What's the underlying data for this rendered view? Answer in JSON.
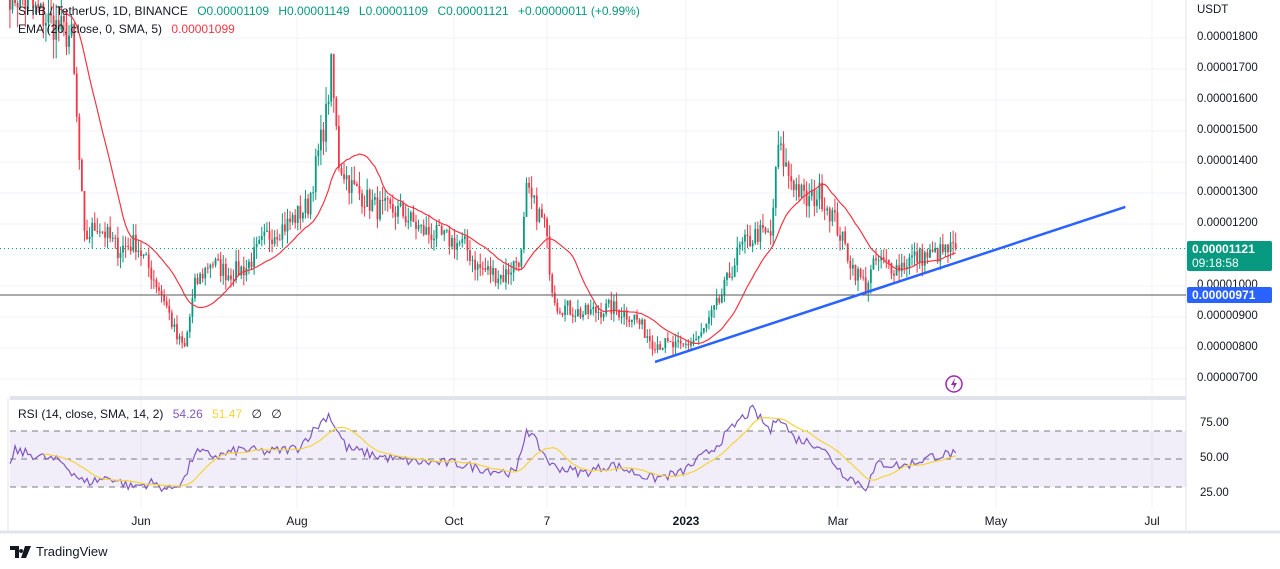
{
  "header": {
    "symbol": "SHIB / TetherUS, 1D, BINANCE",
    "open": "O0.00001109",
    "high": "H0.00001149",
    "low": "L0.00001109",
    "close": "C0.00001121",
    "change": "+0.00000011 (+0.99%)"
  },
  "ema_legend": {
    "label": "EMA (20, close, 0, SMA, 5)",
    "value": "0.00001099"
  },
  "rsi_legend": {
    "label": "RSI (14, close, SMA, 14, 2)",
    "rsi": "54.26",
    "sma": "51.47",
    "x1": "∅",
    "x2": "∅"
  },
  "price_axis": {
    "unit": "USDT",
    "ticks": [
      "0.00001800",
      "0.00001700",
      "0.00001600",
      "0.00001500",
      "0.00001400",
      "0.00001300",
      "0.00001200",
      "0.00001000",
      "0.00000900",
      "0.00000800",
      "0.00000700"
    ]
  },
  "last_price": {
    "value": "0.00001121",
    "countdown": "09:18:58",
    "color": "#089981"
  },
  "hline": {
    "value": "0.00000971",
    "color": "#2962ff"
  },
  "rsi_axis": {
    "ticks": [
      "75.00",
      "50.00",
      "25.00"
    ]
  },
  "time_axis": {
    "labels": [
      "Jun",
      "Aug",
      "Oct",
      "7",
      "2023",
      "Mar",
      "May",
      "Jul"
    ]
  },
  "brand": "TradingView",
  "colors": {
    "up": "#089981",
    "down": "#f23645",
    "ema": "#f23645",
    "rsi": "#7e57c2",
    "rsi_sma": "#f5d33b",
    "trendline": "#2962ff"
  },
  "chart_data": {
    "type": "candlestick",
    "title": "SHIB / TetherUS, 1D, BINANCE",
    "ylabel": "USDT",
    "price_scale": "1e-8",
    "ylim": [
      6.8e-06,
      1.83e-05
    ],
    "close_keypoints": [
      [
        "2022-04-11",
        19.5
      ],
      [
        "2022-05-05",
        18
      ],
      [
        "2022-05-08",
        14
      ],
      [
        "2022-05-10",
        11.5
      ],
      [
        "2022-05-15",
        12
      ],
      [
        "2022-05-23",
        11.2
      ],
      [
        "2022-05-30",
        11.4
      ],
      [
        "2022-06-10",
        9.6
      ],
      [
        "2022-06-15",
        8.3
      ],
      [
        "2022-06-18",
        8.0
      ],
      [
        "2022-06-22",
        10
      ],
      [
        "2022-06-28",
        10.8
      ],
      [
        "2022-07-05",
        10.4
      ],
      [
        "2022-07-12",
        10.6
      ],
      [
        "2022-07-20",
        11.6
      ],
      [
        "2022-07-28",
        12
      ],
      [
        "2022-08-05",
        12.6
      ],
      [
        "2022-08-12",
        15.5
      ],
      [
        "2022-08-14",
        17
      ],
      [
        "2022-08-17",
        14
      ],
      [
        "2022-08-22",
        13.2
      ],
      [
        "2022-09-01",
        12.5
      ],
      [
        "2022-09-10",
        12.4
      ],
      [
        "2022-09-18",
        11.8
      ],
      [
        "2022-09-25",
        11.6
      ],
      [
        "2022-10-05",
        11.3
      ],
      [
        "2022-10-10",
        10.6
      ],
      [
        "2022-10-20",
        10.3
      ],
      [
        "2022-10-27",
        11
      ],
      [
        "2022-10-29",
        13
      ],
      [
        "2022-11-05",
        12
      ],
      [
        "2022-11-08",
        10
      ],
      [
        "2022-11-10",
        9.4
      ],
      [
        "2022-11-20",
        9.1
      ],
      [
        "2022-12-01",
        9.3
      ],
      [
        "2022-12-10",
        9.0
      ],
      [
        "2022-12-17",
        8.2
      ],
      [
        "2022-12-28",
        8.0
      ],
      [
        "2023-01-05",
        8.4
      ],
      [
        "2023-01-12",
        9.5
      ],
      [
        "2023-01-20",
        11.2
      ],
      [
        "2023-01-27",
        11.7
      ],
      [
        "2023-02-01",
        11.6
      ],
      [
        "2023-02-04",
        14.5
      ],
      [
        "2023-02-08",
        13.6
      ],
      [
        "2023-02-15",
        12.7
      ],
      [
        "2023-02-20",
        13
      ],
      [
        "2023-02-25",
        12.3
      ],
      [
        "2023-03-05",
        10.6
      ],
      [
        "2023-03-10",
        10.0
      ],
      [
        "2023-03-14",
        10.8
      ],
      [
        "2023-03-22",
        10.6
      ],
      [
        "2023-03-28",
        10.9
      ],
      [
        "2023-04-05",
        11
      ],
      [
        "2023-04-14",
        11.21
      ]
    ],
    "close_unit": "1e-6 USDT",
    "trendline": [
      [
        "2022-12-18",
        7.55e-06
      ],
      [
        "2023-06-19",
        1.255e-05
      ]
    ],
    "hline": 9.71e-06,
    "rsi": {
      "ylim": [
        20,
        90
      ],
      "bands": [
        30,
        50,
        70
      ],
      "keypoints": [
        [
          "2022-04-11",
          45
        ],
        [
          "2022-04-13",
          56
        ],
        [
          "2022-05-01",
          48
        ],
        [
          "2022-05-10",
          33
        ],
        [
          "2022-05-20",
          37
        ],
        [
          "2022-05-28",
          30
        ],
        [
          "2022-06-05",
          33
        ],
        [
          "2022-06-12",
          28
        ],
        [
          "2022-06-18",
          36
        ],
        [
          "2022-06-22",
          55
        ],
        [
          "2022-07-01",
          52
        ],
        [
          "2022-07-10",
          57
        ],
        [
          "2022-07-20",
          55
        ],
        [
          "2022-08-01",
          58
        ],
        [
          "2022-08-13",
          82
        ],
        [
          "2022-08-20",
          58
        ],
        [
          "2022-09-01",
          52
        ],
        [
          "2022-09-15",
          48
        ],
        [
          "2022-10-01",
          47
        ],
        [
          "2022-10-15",
          42
        ],
        [
          "2022-10-25",
          40
        ],
        [
          "2022-10-29",
          72
        ],
        [
          "2022-11-08",
          45
        ],
        [
          "2022-11-20",
          40
        ],
        [
          "2022-12-01",
          46
        ],
        [
          "2022-12-17",
          36
        ],
        [
          "2022-12-28",
          40
        ],
        [
          "2023-01-10",
          58
        ],
        [
          "2023-01-20",
          78
        ],
        [
          "2023-01-25",
          85
        ],
        [
          "2023-02-01",
          70
        ],
        [
          "2023-02-04",
          82
        ],
        [
          "2023-02-10",
          65
        ],
        [
          "2023-02-20",
          60
        ],
        [
          "2023-03-01",
          40
        ],
        [
          "2023-03-10",
          30
        ],
        [
          "2023-03-15",
          47
        ],
        [
          "2023-03-25",
          45
        ],
        [
          "2023-04-05",
          52
        ],
        [
          "2023-04-14",
          54.26
        ]
      ]
    }
  }
}
